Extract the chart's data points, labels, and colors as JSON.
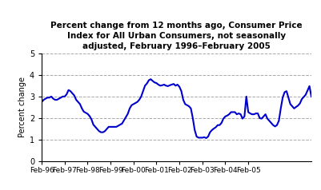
{
  "title_line1": "Percent change from 12 months ago, Consumer Price",
  "title_line2": "Index for All Urban Consumers, not seasonally",
  "title_line3": "adjusted, February 1996–February 2005",
  "ylabel": "Percent change",
  "xlabels": [
    "Feb-96",
    "Feb-97",
    "Feb-98",
    "Feb-99",
    "Feb-00",
    "Feb-01",
    "Feb-02",
    "Feb-03",
    "Feb-04",
    "Feb-05"
  ],
  "ylim": [
    0,
    5
  ],
  "yticks": [
    0,
    1,
    2,
    3,
    4,
    5
  ],
  "line_color": "#0000CC",
  "line_width": 1.5,
  "values": [
    2.75,
    2.85,
    2.9,
    2.95,
    2.95,
    3.0,
    2.9,
    2.85,
    2.85,
    2.9,
    2.95,
    3.0,
    3.0,
    3.1,
    3.3,
    3.25,
    3.15,
    3.05,
    2.85,
    2.75,
    2.65,
    2.45,
    2.3,
    2.25,
    2.2,
    2.1,
    1.95,
    1.7,
    1.6,
    1.5,
    1.4,
    1.35,
    1.35,
    1.4,
    1.5,
    1.6,
    1.6,
    1.6,
    1.6,
    1.6,
    1.65,
    1.7,
    1.75,
    1.9,
    2.05,
    2.2,
    2.45,
    2.6,
    2.65,
    2.7,
    2.75,
    2.85,
    3.0,
    3.25,
    3.5,
    3.6,
    3.75,
    3.8,
    3.72,
    3.65,
    3.62,
    3.55,
    3.5,
    3.52,
    3.55,
    3.5,
    3.48,
    3.52,
    3.55,
    3.58,
    3.5,
    3.55,
    3.45,
    3.25,
    2.85,
    2.65,
    2.6,
    2.55,
    2.45,
    2.0,
    1.45,
    1.15,
    1.1,
    1.1,
    1.1,
    1.12,
    1.08,
    1.15,
    1.35,
    1.45,
    1.52,
    1.58,
    1.68,
    1.68,
    1.78,
    1.98,
    2.08,
    2.12,
    2.18,
    2.28,
    2.28,
    2.28,
    2.18,
    2.22,
    2.18,
    1.98,
    2.08,
    3.0,
    2.28,
    2.22,
    2.18,
    2.18,
    2.22,
    2.22,
    2.0,
    1.98,
    2.08,
    2.18,
    1.98,
    1.88,
    1.78,
    1.68,
    1.62,
    1.68,
    1.88,
    2.45,
    2.95,
    3.2,
    3.25,
    2.95,
    2.65,
    2.55,
    2.45,
    2.52,
    2.58,
    2.68,
    2.88,
    2.98,
    3.08,
    3.28,
    3.48,
    3.0
  ]
}
